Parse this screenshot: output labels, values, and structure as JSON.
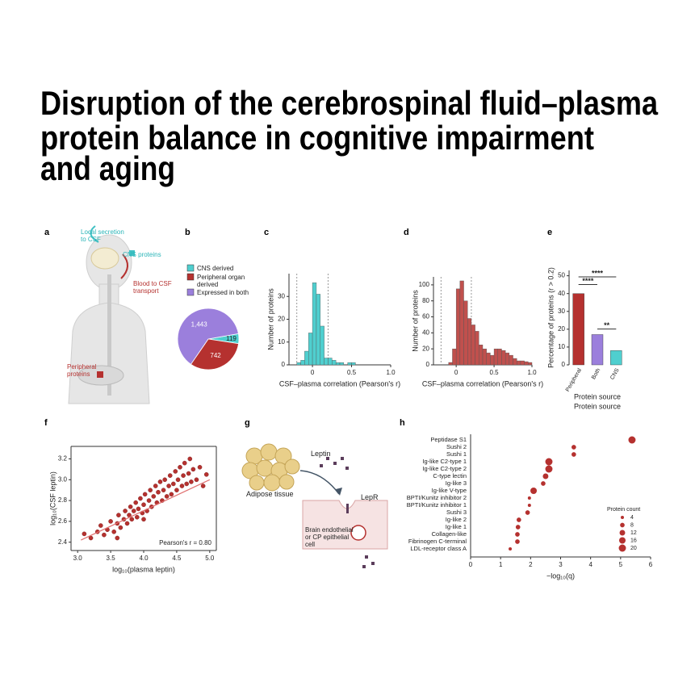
{
  "title_lines": [
    "Disruption of the cerebrospinal fluid–plasma",
    "protein balance in cognitive impairment",
    "and aging"
  ],
  "diagrams": {
    "a": {
      "panel": "a",
      "labels": [
        "Local secretion to CSF",
        "CNS proteins",
        "Blood to CSF transport",
        "Peripheral proteins"
      ]
    },
    "g": {
      "panel": "g",
      "labels": [
        "Adipose tissue",
        "Leptin",
        "LepR",
        "Brain endothelial or CP epithelial cell"
      ]
    }
  },
  "chart_data": [
    {
      "type": "pie",
      "panel": "b",
      "categories": [
        "CNS derived",
        "Peripheral organ derived",
        "Expressed in both"
      ],
      "values": [
        119,
        742,
        1443
      ],
      "value_labels": [
        "119",
        "742",
        "1,443"
      ],
      "colors": [
        "#4fcfcf",
        "#b5312f",
        "#9b7fdc"
      ]
    },
    {
      "type": "histogram",
      "panel": "c",
      "color": "#4fcfcf",
      "bins": [
        -0.2,
        -0.15,
        -0.1,
        -0.05,
        0,
        0.05,
        0.1,
        0.15,
        0.2,
        0.25,
        0.3,
        0.35,
        0.4,
        0.45,
        0.5,
        0.55
      ],
      "counts": [
        1,
        2,
        6,
        14,
        36,
        31,
        17,
        3,
        3,
        2,
        1,
        1,
        0,
        1,
        1
      ],
      "vlines": [
        -0.2,
        0.2
      ],
      "xlim": [
        -0.3,
        1.0
      ],
      "xticks": [
        0,
        0.5,
        {
          "value": 1,
          "label": "1.0"
        }
      ],
      "ylim": [
        0,
        40
      ],
      "yticks": [
        0,
        10,
        20,
        30
      ],
      "xlabel": "CSF–plasma correlation (Pearson's r)",
      "ylabel": "Number of proteins"
    },
    {
      "type": "histogram",
      "panel": "d",
      "color": "#c0504d",
      "bins": [
        -0.1,
        -0.05,
        0,
        0.05,
        0.1,
        0.15,
        0.2,
        0.25,
        0.3,
        0.35,
        0.4,
        0.45,
        0.5,
        0.55,
        0.6,
        0.65,
        0.7,
        0.75,
        0.8,
        0.85,
        0.9,
        0.95,
        1.0
      ],
      "counts": [
        3,
        20,
        95,
        105,
        80,
        58,
        50,
        42,
        25,
        20,
        15,
        12,
        20,
        20,
        18,
        15,
        12,
        8,
        5,
        5,
        4,
        3
      ],
      "vlines": [
        -0.2,
        0.2
      ],
      "xlim": [
        -0.3,
        1.0
      ],
      "xticks": [
        0,
        0.5,
        {
          "value": 1,
          "label": "1.0"
        }
      ],
      "ylim": [
        0,
        110
      ],
      "yticks": [
        0,
        20,
        40,
        60,
        80,
        100
      ],
      "xlabel": "CSF–plasma correlation (Pearson's r)",
      "ylabel": "Number of proteins"
    },
    {
      "type": "bar",
      "panel": "e",
      "categories": [
        "Peripheral",
        "Both",
        "CNS"
      ],
      "values": [
        40,
        17,
        8
      ],
      "colors": [
        "#b5312f",
        "#9b7fdc",
        "#4fcfcf"
      ],
      "ylim": [
        0,
        53
      ],
      "yticks": [
        0,
        10,
        20,
        30,
        40,
        50
      ],
      "annotations": [
        "****",
        "****",
        "**"
      ],
      "xlabel": "Protein source",
      "ylabel": "Percentage of proteins (r > 0.2)"
    },
    {
      "type": "scatter",
      "panel": "f",
      "color": "#b5312f",
      "x": [
        3.1,
        3.2,
        3.3,
        3.35,
        3.4,
        3.45,
        3.5,
        3.55,
        3.6,
        3.62,
        3.65,
        3.7,
        3.72,
        3.75,
        3.78,
        3.8,
        3.82,
        3.85,
        3.88,
        3.9,
        3.92,
        3.95,
        3.98,
        4.0,
        4.02,
        4.05,
        4.08,
        4.1,
        4.12,
        4.15,
        4.18,
        4.2,
        4.22,
        4.25,
        4.28,
        4.3,
        4.32,
        4.35,
        4.38,
        4.4,
        4.42,
        4.45,
        4.48,
        4.5,
        4.52,
        4.55,
        4.58,
        4.6,
        4.62,
        4.65,
        4.68,
        4.7,
        4.72,
        4.75,
        4.8,
        4.85,
        4.9,
        4.95,
        3.6,
        4.0
      ],
      "y": [
        2.48,
        2.44,
        2.5,
        2.56,
        2.47,
        2.52,
        2.6,
        2.5,
        2.58,
        2.66,
        2.54,
        2.62,
        2.7,
        2.58,
        2.66,
        2.74,
        2.62,
        2.7,
        2.78,
        2.64,
        2.72,
        2.82,
        2.68,
        2.76,
        2.86,
        2.7,
        2.8,
        2.9,
        2.74,
        2.84,
        2.94,
        2.78,
        2.88,
        2.98,
        2.8,
        2.9,
        3.0,
        2.84,
        2.94,
        3.04,
        2.86,
        2.96,
        3.08,
        2.9,
        3.0,
        3.12,
        2.94,
        3.04,
        3.16,
        2.96,
        3.06,
        3.2,
        2.98,
        3.1,
        3.0,
        3.12,
        2.94,
        3.05,
        2.44,
        2.62
      ],
      "fit_x": [
        3.05,
        5.0
      ],
      "fit_y": [
        2.42,
        3.0
      ],
      "xlim": [
        2.9,
        5.1
      ],
      "xticks": [
        {
          "value": 3,
          "label": "3.0"
        },
        3.5,
        {
          "value": 4,
          "label": "4.0"
        },
        4.5,
        {
          "value": 5,
          "label": "5.0"
        }
      ],
      "ylim": [
        2.32,
        3.32
      ],
      "yticks": [
        2.4,
        2.6,
        2.8,
        {
          "value": 3,
          "label": "3.0"
        },
        3.2
      ],
      "annotation": "Pearson's r = 0.80",
      "xlabel": "log₁₀(plasma leptin)",
      "ylabel": "log₁₀(CSF leptin)"
    },
    {
      "type": "dot",
      "panel": "h",
      "color": "#b5312f",
      "categories": [
        "Peptidase S1",
        "Sushi 2",
        "Sushi 1",
        "Ig-like C2-type 1",
        "Ig-like C2-type 2",
        "C-type lectin",
        "Ig-like 3",
        "Ig-like V-type",
        "BPTI/Kunitz inhibitor 2",
        "BPTI/Kunitz inhibitor 1",
        "Sushi 3",
        "Ig-like 2",
        "Ig-like 1",
        "Collagen-like",
        "Fibrinogen C-terminal",
        "LDL-receptor class A"
      ],
      "values": [
        5.38,
        3.44,
        3.44,
        2.61,
        2.61,
        2.5,
        2.42,
        2.1,
        1.96,
        1.96,
        1.9,
        1.61,
        1.58,
        1.56,
        1.56,
        1.32
      ],
      "sizes": [
        20,
        8,
        8,
        20,
        20,
        12,
        8,
        16,
        4,
        4,
        8,
        8,
        8,
        8,
        8,
        4
      ],
      "size_legend": {
        "title": "Protein count",
        "values": [
          4,
          8,
          12,
          16,
          20
        ]
      },
      "xlim": [
        0,
        6
      ],
      "xticks": [
        0,
        1,
        2,
        3,
        4,
        5,
        6
      ],
      "xlabel": "−log₁₀(q)"
    }
  ]
}
